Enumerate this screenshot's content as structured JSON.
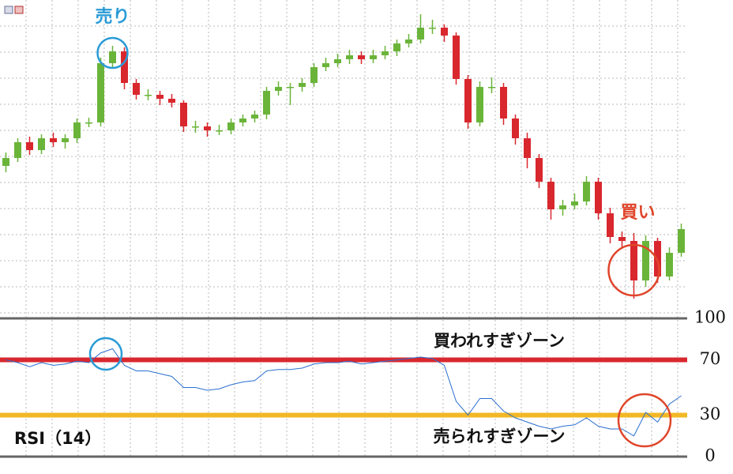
{
  "chart_data": [
    {
      "type": "candlestick",
      "open": [
        193,
        203,
        223,
        213,
        228,
        223,
        228,
        248,
        248,
        323,
        338,
        298,
        283,
        283,
        278,
        273,
        243,
        243,
        238,
        238,
        248,
        253,
        258,
        288,
        293,
        293,
        298,
        318,
        323,
        328,
        333,
        328,
        333,
        338,
        348,
        353,
        368,
        368,
        358,
        303,
        248,
        293,
        293,
        253,
        228,
        203,
        173,
        138,
        143,
        148,
        173,
        133,
        103,
        98,
        48,
        98,
        53,
        83
      ],
      "high": [
        210,
        228,
        230,
        233,
        235,
        233,
        253,
        254,
        330,
        345,
        343,
        303,
        290,
        288,
        284,
        276,
        250,
        248,
        245,
        253,
        258,
        263,
        293,
        300,
        298,
        304,
        323,
        330,
        335,
        340,
        338,
        340,
        345,
        353,
        360,
        385,
        378,
        372,
        362,
        308,
        300,
        305,
        298,
        258,
        235,
        208,
        178,
        150,
        158,
        180,
        178,
        140,
        110,
        108,
        105,
        102,
        90,
        120
      ],
      "low": [
        185,
        198,
        207,
        208,
        217,
        215,
        222,
        242,
        243,
        318,
        290,
        277,
        276,
        270,
        267,
        236,
        235,
        230,
        232,
        233,
        243,
        248,
        252,
        282,
        270,
        287,
        293,
        313,
        318,
        322,
        322,
        323,
        328,
        332,
        343,
        348,
        360,
        350,
        296,
        240,
        243,
        285,
        245,
        220,
        190,
        165,
        125,
        130,
        138,
        143,
        125,
        95,
        90,
        25,
        40,
        45,
        48,
        78
      ],
      "close": [
        203,
        223,
        213,
        228,
        223,
        228,
        248,
        248,
        323,
        338,
        298,
        283,
        283,
        278,
        273,
        243,
        243,
        238,
        238,
        248,
        253,
        258,
        288,
        293,
        293,
        298,
        318,
        323,
        328,
        333,
        328,
        333,
        338,
        348,
        353,
        368,
        368,
        358,
        303,
        248,
        293,
        293,
        253,
        228,
        203,
        173,
        138,
        143,
        148,
        173,
        133,
        103,
        98,
        48,
        98,
        53,
        83,
        113
      ],
      "ylim": [
        0,
        403
      ],
      "up_color": "#6ab43a",
      "down_color": "#d9272e",
      "grid": true,
      "sell_label": "売り",
      "sell_color": "#2a9bd6",
      "buy_label": "買い",
      "buy_color": "#e0452b"
    },
    {
      "type": "line",
      "title": "RSI（14）",
      "color": "#2a6fd0",
      "values": [
        70,
        68,
        65,
        68,
        66,
        67,
        69,
        68,
        75,
        78,
        66,
        62,
        62,
        60,
        58,
        50,
        50,
        48,
        49,
        52,
        54,
        55,
        62,
        63,
        63,
        64,
        67,
        68,
        68,
        69,
        67,
        68,
        69,
        70,
        71,
        72,
        71,
        66,
        40,
        30,
        42,
        42,
        33,
        28,
        25,
        22,
        20,
        22,
        23,
        28,
        22,
        20,
        20,
        15,
        32,
        25,
        38,
        44
      ],
      "ylim": [
        0,
        100
      ],
      "yticks": [
        0,
        30,
        70,
        100
      ],
      "overbought": {
        "value": 70,
        "label": "買われすぎゾーン",
        "color": "#d9272e"
      },
      "oversold": {
        "value": 30,
        "label": "売られすぎゾーン",
        "color": "#f2b824"
      }
    }
  ]
}
